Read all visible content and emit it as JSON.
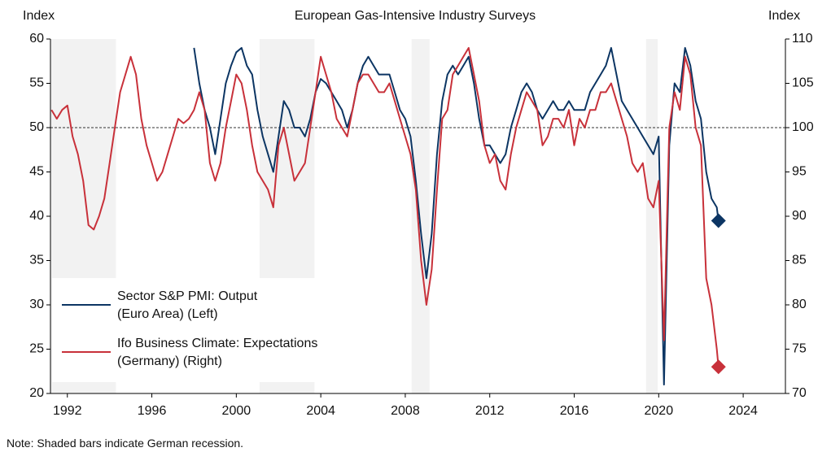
{
  "chart_data": {
    "type": "line",
    "title": "European Gas-Intensive Industry Surveys",
    "y_label": "Index",
    "y2_label": "Index",
    "note": "Note: Shaded bars indicate German recession.",
    "xlim": [
      1991.2,
      2026
    ],
    "xticks": [
      1992,
      1996,
      2000,
      2004,
      2008,
      2012,
      2016,
      2020,
      2024
    ],
    "ylim": [
      20,
      60
    ],
    "yticks": [
      20,
      25,
      30,
      35,
      40,
      45,
      50,
      55,
      60
    ],
    "y2lim": [
      70,
      110
    ],
    "y2ticks": [
      70,
      75,
      80,
      85,
      90,
      95,
      100,
      105,
      110
    ],
    "reference_line": 50,
    "shaded_periods": [
      [
        1991.2,
        1994.3
      ],
      [
        2001.1,
        2003.7
      ],
      [
        2008.3,
        2009.15
      ],
      [
        2019.4,
        2019.95
      ]
    ],
    "shade_color": "#f2f2f2",
    "end_markers": true,
    "legend": "lower left",
    "series": [
      {
        "name": "Sector S&P PMI: Output\n(Euro Area) (Left)",
        "color": "#0c3563",
        "axis": "y",
        "x": [
          1998.0,
          1998.25,
          1998.5,
          1998.75,
          1999.0,
          1999.25,
          1999.5,
          1999.75,
          2000.0,
          2000.25,
          2000.5,
          2000.75,
          2001.0,
          2001.25,
          2001.5,
          2001.75,
          2002.0,
          2002.25,
          2002.5,
          2002.75,
          2003.0,
          2003.25,
          2003.5,
          2003.75,
          2004.0,
          2004.25,
          2004.5,
          2004.75,
          2005.0,
          2005.25,
          2005.5,
          2005.75,
          2006.0,
          2006.25,
          2006.5,
          2006.75,
          2007.0,
          2007.25,
          2007.5,
          2007.75,
          2008.0,
          2008.25,
          2008.5,
          2008.75,
          2009.0,
          2009.25,
          2009.5,
          2009.75,
          2010.0,
          2010.25,
          2010.5,
          2010.75,
          2011.0,
          2011.25,
          2011.5,
          2011.75,
          2012.0,
          2012.25,
          2012.5,
          2012.75,
          2013.0,
          2013.25,
          2013.5,
          2013.75,
          2014.0,
          2014.25,
          2014.5,
          2014.75,
          2015.0,
          2015.25,
          2015.5,
          2015.75,
          2016.0,
          2016.25,
          2016.5,
          2016.75,
          2017.0,
          2017.25,
          2017.5,
          2017.75,
          2018.0,
          2018.25,
          2018.5,
          2018.75,
          2019.0,
          2019.25,
          2019.5,
          2019.75,
          2020.0,
          2020.25,
          2020.5,
          2020.75,
          2021.0,
          2021.25,
          2021.5,
          2021.75,
          2022.0,
          2022.25,
          2022.5,
          2022.75,
          2022.83
        ],
        "values": [
          59,
          55,
          52,
          50,
          47,
          51,
          55,
          57,
          58.5,
          59,
          57,
          56,
          52,
          49,
          47,
          45,
          49,
          53,
          52,
          50,
          50,
          49,
          51,
          54,
          55.5,
          55,
          54,
          53,
          52,
          50,
          52,
          55,
          57,
          58,
          57,
          56,
          56,
          56,
          54,
          52,
          51,
          49,
          44,
          38,
          33,
          38,
          47,
          53,
          56,
          57,
          56,
          57,
          58,
          55,
          51,
          48,
          48,
          47,
          46,
          47,
          50,
          52,
          54,
          55,
          54,
          52,
          51,
          52,
          53,
          52,
          52,
          53,
          52,
          52,
          52,
          54,
          55,
          56,
          57,
          59,
          56,
          53,
          52,
          51,
          50,
          49,
          48,
          47,
          49,
          21,
          48,
          55,
          54,
          59,
          57,
          53,
          51,
          45,
          42,
          41,
          39.5
        ]
      },
      {
        "name": "Ifo Business Climate: Expectations\n(Germany) (Right)",
        "color": "#c8313a",
        "axis": "y2",
        "x": [
          1991.25,
          1991.5,
          1991.75,
          1992.0,
          1992.25,
          1992.5,
          1992.75,
          1993.0,
          1993.25,
          1993.5,
          1993.75,
          1994.0,
          1994.25,
          1994.5,
          1994.75,
          1995.0,
          1995.25,
          1995.5,
          1995.75,
          1996.0,
          1996.25,
          1996.5,
          1996.75,
          1997.0,
          1997.25,
          1997.5,
          1997.75,
          1998.0,
          1998.25,
          1998.5,
          1998.75,
          1999.0,
          1999.25,
          1999.5,
          1999.75,
          2000.0,
          2000.25,
          2000.5,
          2000.75,
          2001.0,
          2001.25,
          2001.5,
          2001.75,
          2002.0,
          2002.25,
          2002.5,
          2002.75,
          2003.0,
          2003.25,
          2003.5,
          2003.75,
          2004.0,
          2004.25,
          2004.5,
          2004.75,
          2005.0,
          2005.25,
          2005.5,
          2005.75,
          2006.0,
          2006.25,
          2006.5,
          2006.75,
          2007.0,
          2007.25,
          2007.5,
          2007.75,
          2008.0,
          2008.25,
          2008.5,
          2008.75,
          2009.0,
          2009.25,
          2009.5,
          2009.75,
          2010.0,
          2010.25,
          2010.5,
          2010.75,
          2011.0,
          2011.25,
          2011.5,
          2011.75,
          2012.0,
          2012.25,
          2012.5,
          2012.75,
          2013.0,
          2013.25,
          2013.5,
          2013.75,
          2014.0,
          2014.25,
          2014.5,
          2014.75,
          2015.0,
          2015.25,
          2015.5,
          2015.75,
          2016.0,
          2016.25,
          2016.5,
          2016.75,
          2017.0,
          2017.25,
          2017.5,
          2017.75,
          2018.0,
          2018.25,
          2018.5,
          2018.75,
          2019.0,
          2019.25,
          2019.5,
          2019.75,
          2020.0,
          2020.25,
          2020.5,
          2020.75,
          2021.0,
          2021.25,
          2021.5,
          2021.75,
          2022.0,
          2022.25,
          2022.5,
          2022.75,
          2022.83
        ],
        "values": [
          102,
          101,
          102,
          102.5,
          99,
          97,
          94,
          89,
          88.5,
          90,
          92,
          96,
          100,
          104,
          106,
          108,
          106,
          101,
          98,
          96,
          94,
          95,
          97,
          99,
          101,
          100.5,
          101,
          102,
          104,
          102,
          96,
          94,
          96,
          100,
          103,
          106,
          105,
          102,
          98,
          95,
          94,
          93,
          91,
          98,
          100,
          97,
          94,
          95,
          96,
          100,
          104,
          108,
          106,
          104,
          101,
          100,
          99,
          102,
          105,
          106,
          106,
          105,
          104,
          104,
          105,
          103,
          101,
          99,
          97,
          93,
          85,
          80,
          84,
          93,
          101,
          102,
          106,
          107,
          108,
          109,
          106,
          103,
          98,
          96,
          97,
          94,
          93,
          97,
          100,
          102,
          104,
          103,
          102,
          98,
          99,
          101,
          101,
          100,
          102,
          98,
          101,
          100,
          102,
          102,
          104,
          104,
          105,
          103,
          101,
          99,
          96,
          95,
          96,
          92,
          91,
          94,
          76,
          100,
          104,
          102,
          108,
          106,
          100,
          98,
          83,
          80,
          75,
          73
        ]
      }
    ]
  }
}
